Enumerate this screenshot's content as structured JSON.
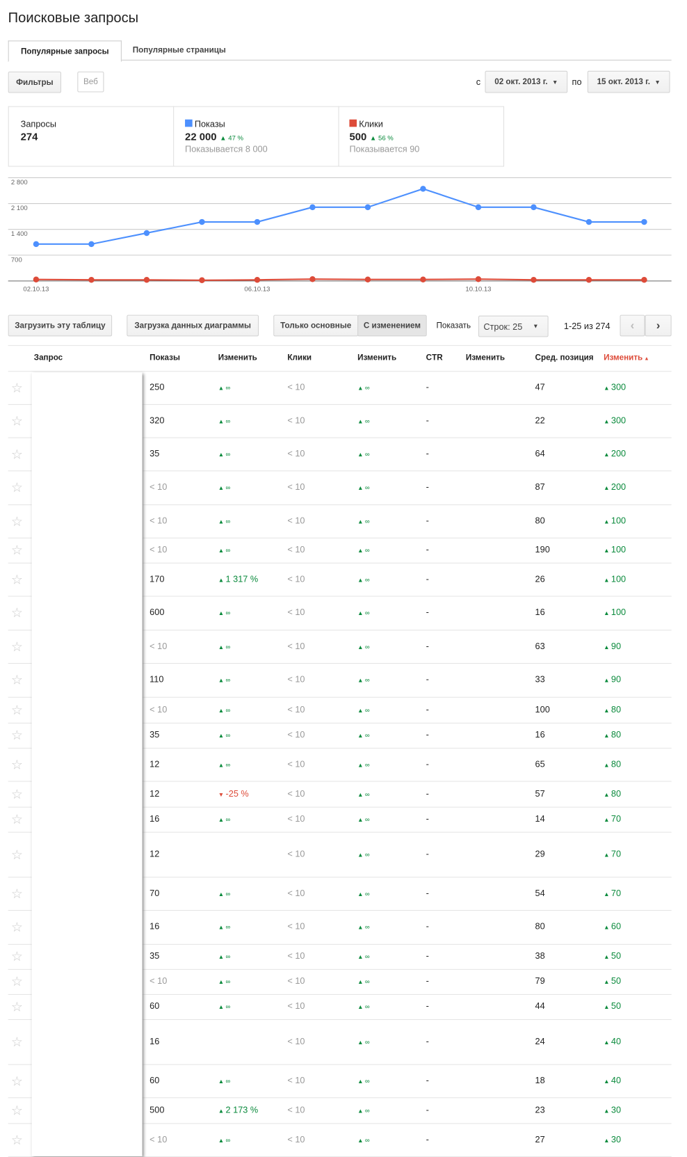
{
  "header": {
    "title": "Поисковые запросы"
  },
  "tabs": [
    "Популярные запросы",
    "Популярные страницы"
  ],
  "filters": {
    "button": "Фильтры",
    "web": "Веб",
    "from_label": "с",
    "from": "02 окт. 2013 г.",
    "to_label": "по",
    "to": "15 окт. 2013 г."
  },
  "summary": {
    "queries_label": "Запросы",
    "queries": "274",
    "impressions": "22 000",
    "impressions_change": "47 %",
    "impressions_note": "Показывается 8 000",
    "clicks": "500",
    "clicks_change": "56 %",
    "clicks_note": "Показывается 90"
  },
  "chart_data": {
    "type": "line",
    "categories": [
      "02.10.13",
      null,
      null,
      null,
      "06.10.13",
      null,
      null,
      null,
      "10.10.13",
      null,
      null,
      null
    ],
    "series": [
      {
        "name": "Показы",
        "color": "#4d90fe",
        "values": [
          1000,
          1000,
          1300,
          1600,
          1600,
          2000,
          2000,
          2500,
          2000,
          2000,
          1600,
          1600
        ]
      },
      {
        "name": "Клики",
        "color": "#dd4b39",
        "values": [
          40,
          30,
          30,
          20,
          30,
          50,
          40,
          40,
          50,
          30,
          30,
          30
        ]
      }
    ],
    "ylim": [
      0,
      2800
    ],
    "yticks": [
      {
        "value": 700,
        "label": "700"
      },
      {
        "value": 1400,
        "label": "1 400"
      },
      {
        "value": 2100,
        "label": "2 100"
      },
      {
        "value": 2800,
        "label": "2 800"
      }
    ],
    "grid": true
  },
  "toolbar": {
    "download_table": "Загрузить эту таблицу",
    "download_chart": "Загрузка данных диаграммы",
    "basic": "Только основные",
    "with_change": "С изменением",
    "show": "Показать",
    "rows": "Строк: 25",
    "range": "1-25 из 274"
  },
  "table": {
    "headers": [
      "Запрос",
      "Показы",
      "Изменить",
      "Клики",
      "Изменить",
      "CTR",
      "Изменить",
      "Сред. позиция",
      "Изменить"
    ],
    "rows": [
      [
        "250",
        "∞",
        "< 10",
        "∞",
        "-",
        "47",
        "300"
      ],
      [
        "320",
        "∞",
        "< 10",
        "∞",
        "-",
        "22",
        "300"
      ],
      [
        "35",
        "∞",
        "< 10",
        "∞",
        "-",
        "64",
        "200"
      ],
      [
        "< 10",
        "∞",
        "< 10",
        "∞",
        "-",
        "87",
        "200"
      ],
      [
        "< 10",
        "∞",
        "< 10",
        "∞",
        "-",
        "80",
        "100"
      ],
      [
        "< 10",
        "∞",
        "< 10",
        "∞",
        "-",
        "190",
        "100"
      ],
      [
        "170",
        "1 317 %",
        "< 10",
        "∞",
        "-",
        "26",
        "100"
      ],
      [
        "600",
        "∞",
        "< 10",
        "∞",
        "-",
        "16",
        "100"
      ],
      [
        "< 10",
        "∞",
        "< 10",
        "∞",
        "-",
        "63",
        "90"
      ],
      [
        "110",
        "∞",
        "< 10",
        "∞",
        "-",
        "33",
        "90"
      ],
      [
        "< 10",
        "∞",
        "< 10",
        "∞",
        "-",
        "100",
        "80"
      ],
      [
        "35",
        "∞",
        "< 10",
        "∞",
        "-",
        "16",
        "80"
      ],
      [
        "12",
        "∞",
        "< 10",
        "∞",
        "-",
        "65",
        "80"
      ],
      [
        "12",
        "-25 %",
        "< 10",
        "∞",
        "-",
        "57",
        "80"
      ],
      [
        "16",
        "∞",
        "< 10",
        "∞",
        "-",
        "14",
        "70"
      ],
      [
        "12",
        null,
        "< 10",
        "∞",
        "-",
        "29",
        "70"
      ],
      [
        "70",
        "∞",
        "< 10",
        "∞",
        "-",
        "54",
        "70"
      ],
      [
        "16",
        "∞",
        "< 10",
        "∞",
        "-",
        "80",
        "60"
      ],
      [
        "35",
        "∞",
        "< 10",
        "∞",
        "-",
        "38",
        "50"
      ],
      [
        "< 10",
        "∞",
        "< 10",
        "∞",
        "-",
        "79",
        "50"
      ],
      [
        "60",
        "∞",
        "< 10",
        "∞",
        "-",
        "44",
        "50"
      ],
      [
        "16",
        null,
        "< 10",
        "∞",
        "-",
        "24",
        "40"
      ],
      [
        "60",
        "∞",
        "< 10",
        "∞",
        "-",
        "18",
        "40"
      ],
      [
        "500",
        "2 173 %",
        "< 10",
        "∞",
        "-",
        "23",
        "30"
      ],
      [
        "< 10",
        "∞",
        "< 10",
        "∞",
        "-",
        "27",
        "30"
      ]
    ]
  }
}
